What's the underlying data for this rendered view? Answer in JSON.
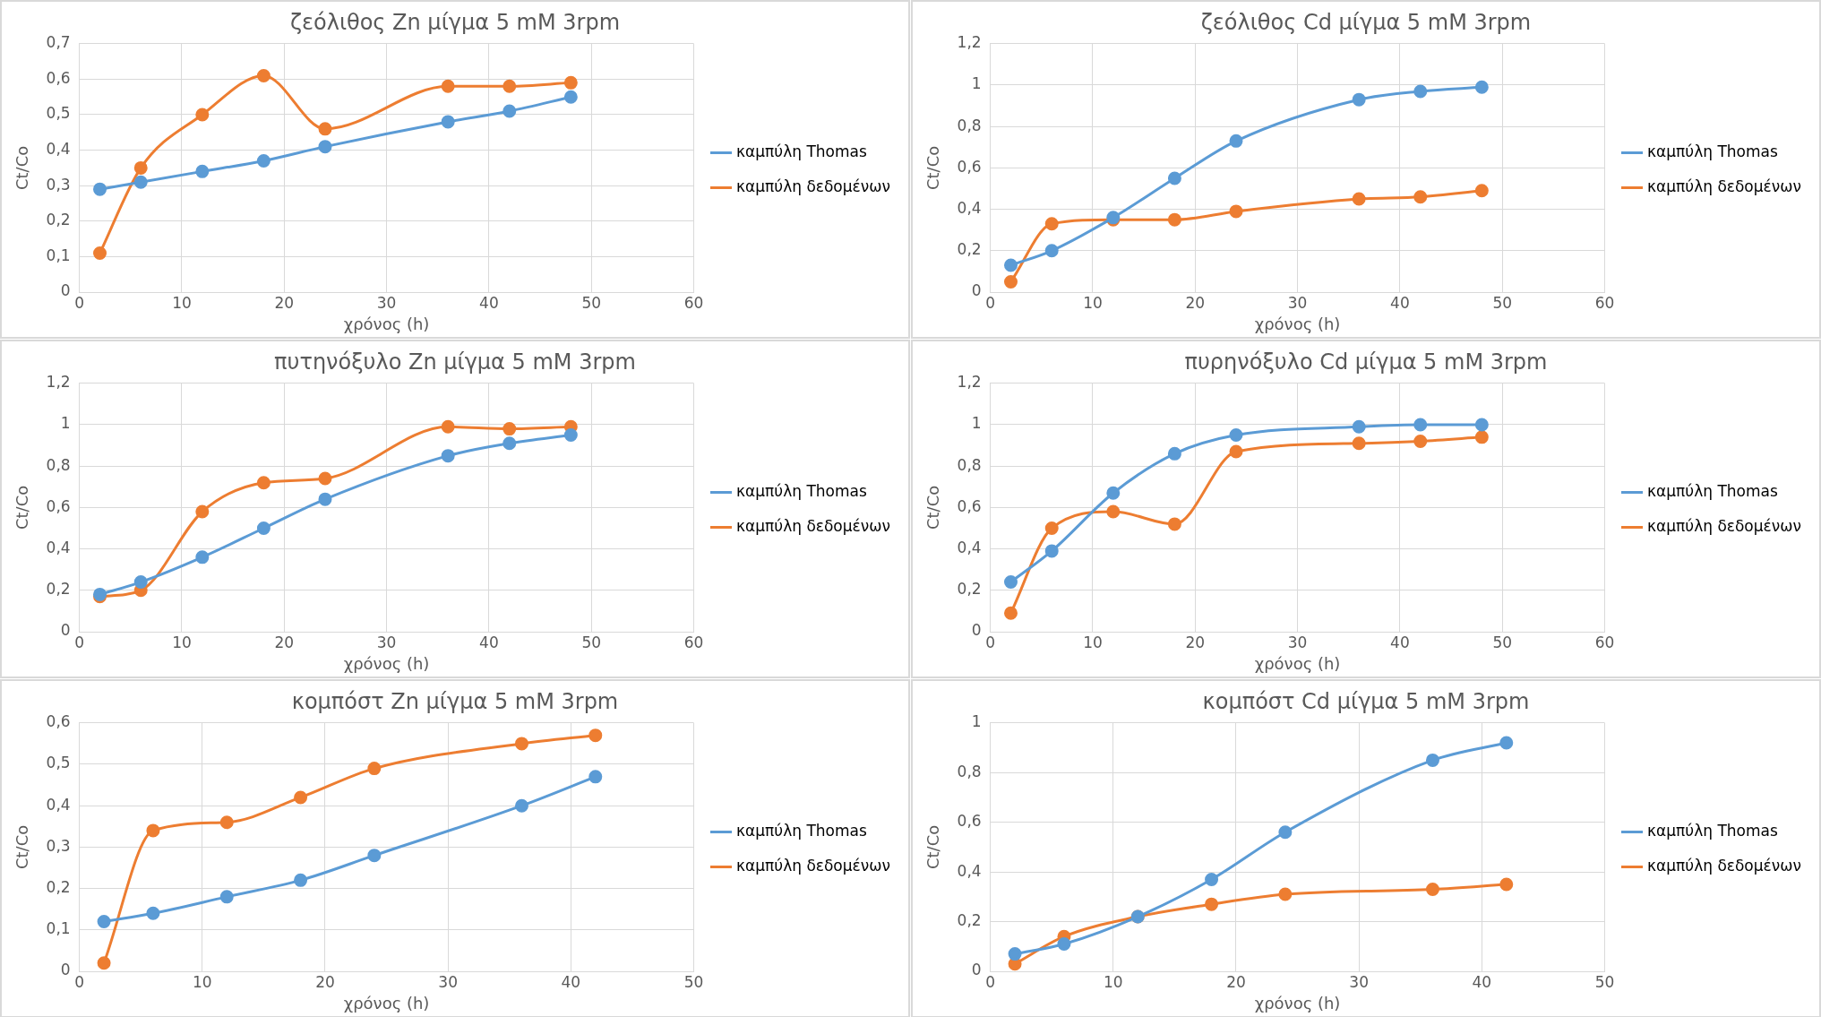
{
  "chart_data": [
    {
      "type": "line",
      "title": "ζεόλιθος Zn μίγμα 5 mM 3rpm",
      "xlabel": "χρόνος (h)",
      "ylabel": "Ct/Co",
      "x": [
        2,
        6,
        12,
        18,
        24,
        36,
        42,
        48
      ],
      "xlim": [
        0,
        60
      ],
      "xticks": [
        0,
        10,
        20,
        30,
        40,
        50,
        60
      ],
      "ylim": [
        0,
        0.7
      ],
      "yticks": [
        {
          "value": 0,
          "label": "0"
        },
        {
          "value": 0.1,
          "label": "0,1"
        },
        {
          "value": 0.2,
          "label": "0,2"
        },
        {
          "value": 0.3,
          "label": "0,3"
        },
        {
          "value": 0.4,
          "label": "0,4"
        },
        {
          "value": 0.5,
          "label": "0,5"
        },
        {
          "value": 0.6,
          "label": "0,6"
        },
        {
          "value": 0.7,
          "label": "0,7"
        }
      ],
      "grid": true,
      "legend": "right",
      "marker": "circle",
      "line_style": "solid",
      "series": [
        {
          "name": "καμπύλη Thomas",
          "color": "#5b9bd5",
          "values": [
            0.29,
            0.31,
            0.34,
            0.37,
            0.41,
            0.48,
            0.51,
            0.55
          ]
        },
        {
          "name": "καμπύλη δεδομένων",
          "color": "#ed7d31",
          "values": [
            0.11,
            0.35,
            0.5,
            0.61,
            0.46,
            0.58,
            0.58,
            0.59
          ]
        }
      ]
    },
    {
      "type": "line",
      "title": "ζεόλιθος Cd μίγμα 5 mM 3rpm",
      "xlabel": "χρόνος (h)",
      "ylabel": "Ct/Co",
      "x": [
        2,
        6,
        12,
        18,
        24,
        36,
        42,
        48
      ],
      "xlim": [
        0,
        60
      ],
      "xticks": [
        0,
        10,
        20,
        30,
        40,
        50,
        60
      ],
      "ylim": [
        0,
        1.2
      ],
      "yticks": [
        {
          "value": 0,
          "label": "0"
        },
        {
          "value": 0.2,
          "label": "0,2"
        },
        {
          "value": 0.4,
          "label": "0,4"
        },
        {
          "value": 0.6,
          "label": "0,6"
        },
        {
          "value": 0.8,
          "label": "0,8"
        },
        {
          "value": 1,
          "label": "1"
        },
        {
          "value": 1.2,
          "label": "1,2"
        }
      ],
      "grid": true,
      "legend": "right",
      "marker": "circle",
      "line_style": "solid",
      "series": [
        {
          "name": "καμπύλη Thomas",
          "color": "#5b9bd5",
          "values": [
            0.13,
            0.2,
            0.36,
            0.55,
            0.73,
            0.93,
            0.97,
            0.99
          ]
        },
        {
          "name": "καμπύλη δεδομένων",
          "color": "#ed7d31",
          "values": [
            0.05,
            0.33,
            0.35,
            0.35,
            0.39,
            0.45,
            0.46,
            0.49
          ]
        }
      ]
    },
    {
      "type": "line",
      "title": "πυτηνόξυλο Zn μίγμα 5 mM 3rpm",
      "xlabel": "χρόνος (h)",
      "ylabel": "Ct/Co",
      "x": [
        2,
        6,
        12,
        18,
        24,
        36,
        42,
        48
      ],
      "xlim": [
        0,
        60
      ],
      "xticks": [
        0,
        10,
        20,
        30,
        40,
        50,
        60
      ],
      "ylim": [
        0,
        1.2
      ],
      "yticks": [
        {
          "value": 0,
          "label": "0"
        },
        {
          "value": 0.2,
          "label": "0,2"
        },
        {
          "value": 0.4,
          "label": "0,4"
        },
        {
          "value": 0.6,
          "label": "0,6"
        },
        {
          "value": 0.8,
          "label": "0,8"
        },
        {
          "value": 1,
          "label": "1"
        },
        {
          "value": 1.2,
          "label": "1,2"
        }
      ],
      "grid": true,
      "legend": "right",
      "marker": "circle",
      "line_style": "solid",
      "series": [
        {
          "name": "καμπύλη Thomas",
          "color": "#5b9bd5",
          "values": [
            0.18,
            0.24,
            0.36,
            0.5,
            0.64,
            0.85,
            0.91,
            0.95
          ]
        },
        {
          "name": "καμπύλη δεδομένων",
          "color": "#ed7d31",
          "values": [
            0.17,
            0.2,
            0.58,
            0.72,
            0.74,
            0.99,
            0.98,
            0.99
          ]
        }
      ]
    },
    {
      "type": "line",
      "title": "πυρηνόξυλο Cd μίγμα 5 mM 3rpm",
      "xlabel": "χρόνος (h)",
      "ylabel": "Ct/Co",
      "x": [
        2,
        6,
        12,
        18,
        24,
        36,
        42,
        48
      ],
      "xlim": [
        0,
        60
      ],
      "xticks": [
        0,
        10,
        20,
        30,
        40,
        50,
        60
      ],
      "ylim": [
        0,
        1.2
      ],
      "yticks": [
        {
          "value": 0,
          "label": "0"
        },
        {
          "value": 0.2,
          "label": "0,2"
        },
        {
          "value": 0.4,
          "label": "0,4"
        },
        {
          "value": 0.6,
          "label": "0,6"
        },
        {
          "value": 0.8,
          "label": "0,8"
        },
        {
          "value": 1,
          "label": "1"
        },
        {
          "value": 1.2,
          "label": "1,2"
        }
      ],
      "grid": true,
      "legend": "right",
      "marker": "circle",
      "line_style": "solid",
      "series": [
        {
          "name": "καμπύλη Thomas",
          "color": "#5b9bd5",
          "values": [
            0.24,
            0.39,
            0.67,
            0.86,
            0.95,
            0.99,
            1.0,
            1.0
          ]
        },
        {
          "name": "καμπύλη δεδομένων",
          "color": "#ed7d31",
          "values": [
            0.09,
            0.5,
            0.58,
            0.52,
            0.87,
            0.91,
            0.92,
            0.94
          ]
        }
      ]
    },
    {
      "type": "line",
      "title": "κομπόστ Zn μίγμα 5 mM 3rpm",
      "xlabel": "χρόνος (h)",
      "ylabel": "Ct/Co",
      "x": [
        2,
        6,
        12,
        18,
        24,
        36,
        42
      ],
      "xlim": [
        0,
        50
      ],
      "xticks": [
        0,
        10,
        20,
        30,
        40,
        50
      ],
      "ylim": [
        0,
        0.6
      ],
      "yticks": [
        {
          "value": 0,
          "label": "0"
        },
        {
          "value": 0.1,
          "label": "0,1"
        },
        {
          "value": 0.2,
          "label": "0,2"
        },
        {
          "value": 0.3,
          "label": "0,3"
        },
        {
          "value": 0.4,
          "label": "0,4"
        },
        {
          "value": 0.5,
          "label": "0,5"
        },
        {
          "value": 0.6,
          "label": "0,6"
        }
      ],
      "grid": true,
      "legend": "right",
      "marker": "circle",
      "line_style": "solid",
      "series": [
        {
          "name": "καμπύλη Thomas",
          "color": "#5b9bd5",
          "values": [
            0.12,
            0.14,
            0.18,
            0.22,
            0.28,
            0.4,
            0.47
          ]
        },
        {
          "name": "καμπύλη δεδομένων",
          "color": "#ed7d31",
          "values": [
            0.02,
            0.34,
            0.36,
            0.42,
            0.49,
            0.55,
            0.57
          ]
        }
      ]
    },
    {
      "type": "line",
      "title": "κομπόστ Cd μίγμα 5 mM 3rpm",
      "xlabel": "χρόνος (h)",
      "ylabel": "Ct/Co",
      "x": [
        2,
        6,
        12,
        18,
        24,
        36,
        42
      ],
      "xlim": [
        0,
        50
      ],
      "xticks": [
        0,
        10,
        20,
        30,
        40,
        50
      ],
      "ylim": [
        0,
        1
      ],
      "yticks": [
        {
          "value": 0,
          "label": "0"
        },
        {
          "value": 0.2,
          "label": "0,2"
        },
        {
          "value": 0.4,
          "label": "0,4"
        },
        {
          "value": 0.6,
          "label": "0,6"
        },
        {
          "value": 0.8,
          "label": "0,8"
        },
        {
          "value": 1,
          "label": "1"
        }
      ],
      "grid": true,
      "legend": "right",
      "marker": "circle",
      "line_style": "solid",
      "series": [
        {
          "name": "καμπύλη Thomas",
          "color": "#5b9bd5",
          "values": [
            0.07,
            0.11,
            0.22,
            0.37,
            0.56,
            0.85,
            0.92
          ]
        },
        {
          "name": "καμπύλη δεδομένων",
          "color": "#ed7d31",
          "values": [
            0.03,
            0.14,
            0.22,
            0.27,
            0.31,
            0.33,
            0.35
          ]
        }
      ]
    }
  ]
}
